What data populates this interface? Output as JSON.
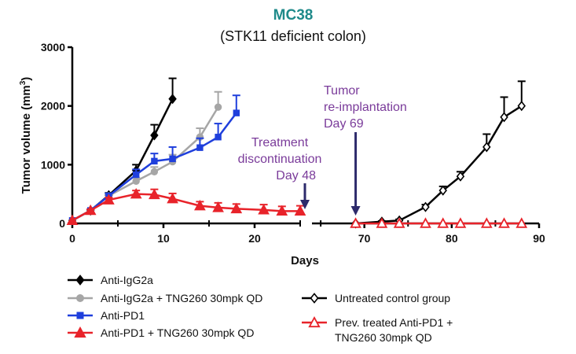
{
  "chart_data": {
    "type": "line",
    "title": "MC38",
    "subtitle": "(STK11 deficient colon)",
    "xlabel": "Days",
    "ylabel": "Tumor volume (mm³)",
    "ylabel_main": "Tumor volume (mm",
    "ylabel_sup": "3",
    "ylabel_close": ")",
    "ylim": [
      0,
      3000
    ],
    "yticks": [
      0,
      1000,
      2000,
      3000
    ],
    "x_segments": [
      {
        "range": [
          0,
          25
        ],
        "ticks": [
          0,
          10,
          20
        ]
      },
      {
        "range": [
          64,
          90
        ],
        "ticks": [
          70,
          80,
          90
        ]
      }
    ],
    "grid": false,
    "legend_position": "bottom",
    "annotations": [
      {
        "lines": [
          "Treatment",
          "discontinuation",
          "Day 48"
        ],
        "arrow_at_day": 25
      },
      {
        "lines": [
          "Tumor",
          "re-implantation",
          "Day 69"
        ],
        "arrow_at_day": 69
      }
    ],
    "series": [
      {
        "name": "Anti-IgG2a",
        "color": "#000000",
        "marker": "diamond-filled",
        "x": [
          0,
          2,
          4,
          7,
          9,
          11
        ],
        "y": [
          50,
          220,
          480,
          900,
          1500,
          2120
        ],
        "err": [
          0,
          20,
          40,
          100,
          180,
          350
        ]
      },
      {
        "name": "Anti-IgG2a + TNG260 30mpk QD",
        "color": "#a6a6a6",
        "marker": "circle",
        "x": [
          0,
          2,
          4,
          7,
          9,
          11,
          14,
          16
        ],
        "y": [
          50,
          220,
          470,
          720,
          880,
          1050,
          1470,
          1980
        ],
        "err": [
          0,
          20,
          40,
          60,
          80,
          120,
          150,
          260
        ]
      },
      {
        "name": "Anti-PD1",
        "color": "#1f3fdc",
        "marker": "square",
        "x": [
          0,
          2,
          4,
          7,
          9,
          11,
          14,
          16,
          18
        ],
        "y": [
          50,
          220,
          470,
          830,
          1060,
          1100,
          1290,
          1470,
          1880
        ],
        "err": [
          0,
          20,
          40,
          90,
          130,
          200,
          160,
          230,
          300
        ]
      },
      {
        "name": "Anti-PD1 + TNG260 30mpk QD",
        "color": "#e8232a",
        "marker": "triangle-filled",
        "x": [
          0,
          2,
          4,
          7,
          9,
          11,
          14,
          16,
          18,
          21,
          23,
          25
        ],
        "y": [
          50,
          220,
          400,
          500,
          490,
          420,
          300,
          270,
          250,
          230,
          210,
          210
        ],
        "err": [
          0,
          20,
          40,
          60,
          90,
          90,
          70,
          80,
          80,
          90,
          80,
          90
        ]
      },
      {
        "name": "Untreated control group",
        "color": "#000000",
        "marker": "diamond-open",
        "x": [
          69,
          72,
          74,
          77,
          79,
          81,
          84,
          86,
          88
        ],
        "y": [
          0,
          30,
          50,
          280,
          560,
          800,
          1300,
          1810,
          2000
        ],
        "err": [
          0,
          10,
          20,
          40,
          70,
          80,
          220,
          340,
          420
        ]
      },
      {
        "name": "Prev. treated Anti-PD1 + TNG260 30mpk QD",
        "name_lines": [
          "Prev. treated Anti-PD1 +",
          "TNG260 30mpk QD"
        ],
        "color": "#e8232a",
        "marker": "triangle-open",
        "x": [
          69,
          72,
          74,
          77,
          79,
          81,
          84,
          86,
          88
        ],
        "y": [
          0,
          0,
          0,
          0,
          0,
          0,
          0,
          0,
          0
        ],
        "err": [
          0,
          0,
          0,
          0,
          0,
          0,
          0,
          0,
          0
        ]
      }
    ]
  }
}
